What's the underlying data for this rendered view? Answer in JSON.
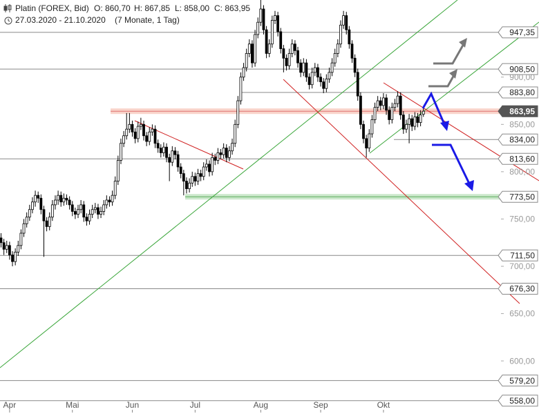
{
  "chart_data": {
    "type": "candlestick",
    "title": "Platin (FOREX, Bid)",
    "ohlc_labels": [
      "O: 860,70",
      "H: 867,85",
      "L: 858,00",
      "C: 863,95"
    ],
    "date_range": "27.03.2020 - 21.10.2020",
    "period": "(7 Monate, 1 Tag)",
    "categories": [
      null,
      null,
      null,
      "Apr",
      null,
      null,
      null,
      null,
      null,
      null,
      null,
      null,
      null,
      null,
      null,
      null,
      null,
      null,
      null,
      null,
      null,
      null,
      null,
      null,
      null,
      "Mai",
      null,
      null,
      null,
      null,
      null,
      null,
      null,
      null,
      null,
      null,
      null,
      null,
      null,
      null,
      null,
      null,
      null,
      null,
      null,
      null,
      "Jun",
      null,
      null,
      null,
      null,
      null,
      null,
      null,
      null,
      null,
      null,
      null,
      null,
      null,
      null,
      null,
      null,
      null,
      null,
      null,
      null,
      null,
      "Jul",
      null,
      null,
      null,
      null,
      null,
      null,
      null,
      null,
      null,
      null,
      null,
      null,
      null,
      null,
      null,
      null,
      null,
      null,
      null,
      null,
      null,
      null,
      "Aug",
      null,
      null,
      null,
      null,
      null,
      null,
      null,
      null,
      null,
      null,
      null,
      null,
      null,
      null,
      null,
      null,
      null,
      null,
      null,
      null,
      "Sep",
      null,
      null,
      null,
      null,
      null,
      null,
      null,
      null,
      null,
      null,
      null,
      null,
      null,
      null,
      null,
      null,
      null,
      null,
      null,
      null,
      null,
      "Okt",
      null,
      null,
      null,
      null,
      null,
      null,
      null,
      null,
      null,
      null,
      null,
      null,
      null,
      null
    ],
    "ohlc": [
      [
        730,
        735,
        720,
        725
      ],
      [
        725,
        729,
        712,
        718
      ],
      [
        718,
        727,
        714,
        722
      ],
      [
        722,
        726,
        707,
        712
      ],
      [
        712,
        716,
        700,
        705
      ],
      [
        705,
        719,
        701,
        715
      ],
      [
        715,
        727,
        711,
        722
      ],
      [
        722,
        739,
        718,
        735
      ],
      [
        735,
        750,
        731,
        745
      ],
      [
        745,
        757,
        741,
        752
      ],
      [
        752,
        765,
        748,
        760
      ],
      [
        760,
        773,
        756,
        768
      ],
      [
        768,
        780,
        763,
        775
      ],
      [
        775,
        779,
        767,
        772
      ],
      [
        772,
        776,
        755,
        760
      ],
      [
        760,
        764,
        710,
        748
      ],
      [
        748,
        752,
        737,
        742
      ],
      [
        742,
        757,
        738,
        752
      ],
      [
        752,
        770,
        748,
        765
      ],
      [
        765,
        775,
        760,
        770
      ],
      [
        770,
        780,
        765,
        775
      ],
      [
        775,
        779,
        763,
        768
      ],
      [
        768,
        777,
        764,
        772
      ],
      [
        772,
        776,
        765,
        770
      ],
      [
        770,
        774,
        760,
        765
      ],
      [
        765,
        769,
        753,
        758
      ],
      [
        758,
        762,
        750,
        755
      ],
      [
        755,
        765,
        751,
        760
      ],
      [
        760,
        770,
        756,
        765
      ],
      [
        765,
        769,
        747,
        752
      ],
      [
        752,
        756,
        743,
        748
      ],
      [
        748,
        760,
        744,
        755
      ],
      [
        755,
        765,
        751,
        760
      ],
      [
        760,
        767,
        756,
        762
      ],
      [
        762,
        766,
        750,
        755
      ],
      [
        755,
        763,
        751,
        758
      ],
      [
        758,
        770,
        754,
        765
      ],
      [
        765,
        775,
        761,
        770
      ],
      [
        770,
        774,
        763,
        768
      ],
      [
        768,
        780,
        764,
        775
      ],
      [
        775,
        795,
        771,
        790
      ],
      [
        790,
        817,
        786,
        812
      ],
      [
        812,
        835,
        808,
        830
      ],
      [
        830,
        843,
        826,
        838
      ],
      [
        838,
        862,
        834,
        845
      ],
      [
        845,
        862,
        841,
        850
      ],
      [
        850,
        854,
        837,
        842
      ],
      [
        842,
        846,
        830,
        835
      ],
      [
        835,
        853,
        831,
        848
      ],
      [
        848,
        857,
        844,
        850
      ],
      [
        850,
        854,
        833,
        838
      ],
      [
        838,
        842,
        827,
        832
      ],
      [
        832,
        847,
        828,
        842
      ],
      [
        842,
        850,
        838,
        845
      ],
      [
        845,
        849,
        825,
        830
      ],
      [
        830,
        834,
        820,
        825
      ],
      [
        825,
        829,
        815,
        820
      ],
      [
        820,
        831,
        816,
        826
      ],
      [
        826,
        830,
        810,
        815
      ],
      [
        815,
        819,
        790,
        810
      ],
      [
        810,
        827,
        806,
        822
      ],
      [
        822,
        826,
        813,
        818
      ],
      [
        818,
        822,
        800,
        805
      ],
      [
        805,
        809,
        793,
        798
      ],
      [
        798,
        802,
        775,
        790
      ],
      [
        790,
        794,
        777,
        782
      ],
      [
        782,
        793,
        778,
        788
      ],
      [
        788,
        800,
        784,
        795
      ],
      [
        795,
        799,
        785,
        790
      ],
      [
        790,
        803,
        786,
        798
      ],
      [
        798,
        802,
        790,
        795
      ],
      [
        795,
        810,
        791,
        805
      ],
      [
        805,
        813,
        801,
        808
      ],
      [
        808,
        812,
        795,
        800
      ],
      [
        800,
        820,
        796,
        815
      ],
      [
        815,
        819,
        807,
        812
      ],
      [
        812,
        825,
        808,
        820
      ],
      [
        820,
        824,
        813,
        818
      ],
      [
        818,
        830,
        814,
        825
      ],
      [
        825,
        829,
        810,
        815
      ],
      [
        815,
        827,
        811,
        822
      ],
      [
        822,
        835,
        818,
        830
      ],
      [
        830,
        855,
        826,
        850
      ],
      [
        850,
        880,
        846,
        875
      ],
      [
        875,
        905,
        871,
        900
      ],
      [
        900,
        915,
        896,
        910
      ],
      [
        910,
        930,
        906,
        925
      ],
      [
        925,
        940,
        921,
        935
      ],
      [
        935,
        939,
        910,
        915
      ],
      [
        915,
        950,
        911,
        945
      ],
      [
        945,
        963,
        941,
        958
      ],
      [
        958,
        985,
        954,
        972
      ],
      [
        972,
        976,
        945,
        950
      ],
      [
        950,
        954,
        920,
        925
      ],
      [
        925,
        940,
        921,
        935
      ],
      [
        935,
        965,
        931,
        960
      ],
      [
        960,
        970,
        956,
        965
      ],
      [
        965,
        969,
        943,
        948
      ],
      [
        948,
        952,
        925,
        930
      ],
      [
        930,
        934,
        905,
        920
      ],
      [
        920,
        924,
        907,
        912
      ],
      [
        912,
        930,
        908,
        925
      ],
      [
        925,
        940,
        921,
        935
      ],
      [
        935,
        939,
        923,
        928
      ],
      [
        928,
        932,
        910,
        915
      ],
      [
        915,
        919,
        900,
        905
      ],
      [
        905,
        920,
        901,
        915
      ],
      [
        915,
        919,
        895,
        900
      ],
      [
        900,
        904,
        887,
        892
      ],
      [
        892,
        910,
        888,
        905
      ],
      [
        905,
        915,
        901,
        910
      ],
      [
        910,
        914,
        895,
        900
      ],
      [
        900,
        904,
        890,
        895
      ],
      [
        895,
        899,
        883,
        888
      ],
      [
        888,
        903,
        884,
        898
      ],
      [
        898,
        910,
        894,
        905
      ],
      [
        905,
        920,
        901,
        915
      ],
      [
        915,
        930,
        911,
        925
      ],
      [
        925,
        940,
        921,
        935
      ],
      [
        935,
        960,
        931,
        955
      ],
      [
        955,
        970,
        951,
        965
      ],
      [
        965,
        969,
        945,
        950
      ],
      [
        950,
        954,
        930,
        935
      ],
      [
        935,
        939,
        915,
        920
      ],
      [
        920,
        924,
        900,
        905
      ],
      [
        905,
        909,
        875,
        880
      ],
      [
        880,
        884,
        845,
        850
      ],
      [
        850,
        854,
        830,
        835
      ],
      [
        835,
        839,
        815,
        825
      ],
      [
        825,
        845,
        821,
        840
      ],
      [
        840,
        860,
        836,
        855
      ],
      [
        855,
        873,
        851,
        868
      ],
      [
        868,
        880,
        864,
        875
      ],
      [
        875,
        879,
        865,
        870
      ],
      [
        870,
        883,
        866,
        878
      ],
      [
        878,
        882,
        860,
        865
      ],
      [
        865,
        869,
        850,
        855
      ],
      [
        855,
        873,
        851,
        868
      ],
      [
        868,
        877,
        864,
        872
      ],
      [
        872,
        885,
        868,
        880
      ],
      [
        880,
        884,
        855,
        860
      ],
      [
        860,
        864,
        840,
        845
      ],
      [
        845,
        855,
        841,
        850
      ],
      [
        850,
        861,
        830,
        856
      ],
      [
        856,
        860,
        843,
        848
      ],
      [
        848,
        863,
        844,
        858
      ],
      [
        858,
        862,
        847,
        852
      ],
      [
        852,
        865,
        848,
        860
      ],
      [
        860.7,
        867.85,
        858,
        863.95
      ]
    ],
    "ylim": [
      545.4,
      981.5
    ],
    "yticks": [
      {
        "value": 600,
        "label": "600,00"
      },
      {
        "value": 650,
        "label": "650,00"
      },
      {
        "value": 700,
        "label": "700,00"
      },
      {
        "value": 750,
        "label": "750,00"
      },
      {
        "value": 800,
        "label": "800,00"
      },
      {
        "value": 850,
        "label": "850,00"
      },
      {
        "value": 900,
        "label": "900,00"
      }
    ],
    "levels": [
      {
        "value": 947.35,
        "label": "947,35"
      },
      {
        "value": 908.5,
        "label": "908,50"
      },
      {
        "value": 883.8,
        "label": "883,80"
      },
      {
        "value": 863.95,
        "label": "863,95",
        "style": "current"
      },
      {
        "value": 834,
        "label": "834,00"
      },
      {
        "value": 813.6,
        "label": "813,60"
      },
      {
        "value": 773.5,
        "label": "773,50",
        "style": "support"
      },
      {
        "value": 711.5,
        "label": "711,50"
      },
      {
        "value": 676.3,
        "label": "676,30"
      },
      {
        "value": 579.2,
        "label": "579,20"
      },
      {
        "value": 558,
        "label": "558,00"
      }
    ],
    "up_color": "#ffffff",
    "down_color": "#000000"
  }
}
